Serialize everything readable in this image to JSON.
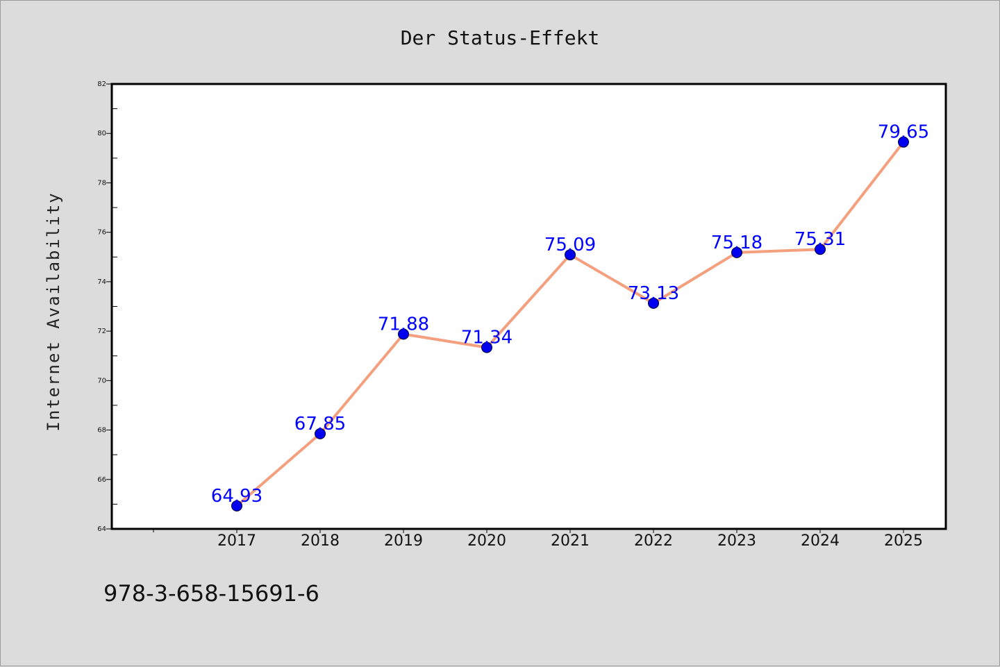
{
  "colors": {
    "background": "#dcdcdc",
    "plot_area": "#ffffff",
    "line": "#f4a07e",
    "marker": "#0000ee",
    "data_label": "#0000ff"
  },
  "footer_text": "978-3-658-15691-6",
  "chart_data": {
    "type": "line",
    "title": "Der Status-Effekt",
    "xlabel": "",
    "ylabel": "Internet Availability",
    "categories": [
      "2017",
      "2018",
      "2019",
      "2020",
      "2021",
      "2022",
      "2023",
      "2024",
      "2025"
    ],
    "series": [
      {
        "values": [
          64.93,
          67.85,
          71.88,
          71.34,
          75.09,
          73.13,
          75.18,
          75.31,
          79.65
        ],
        "data_labels": [
          "64.93",
          "67.85",
          "71.88",
          "71.34",
          "75.09",
          "73.13",
          "75.18",
          "75.31",
          "79.65"
        ]
      }
    ],
    "ylim": [
      64,
      82
    ],
    "yticks": [
      64,
      66,
      68,
      70,
      72,
      74,
      76,
      78,
      80,
      82
    ],
    "ytick_labels": [
      "64",
      "66",
      "68",
      "70",
      "72",
      "74",
      "76",
      "78",
      "80",
      "82"
    ],
    "grid": false,
    "legend": "none"
  }
}
